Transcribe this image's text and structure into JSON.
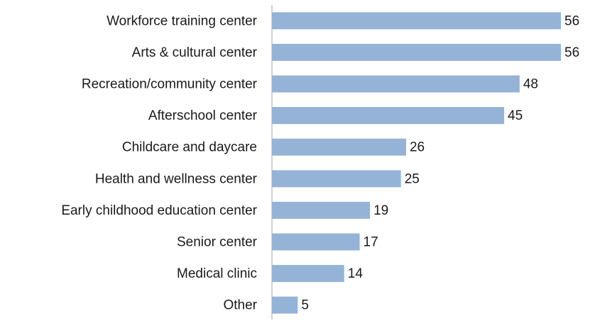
{
  "chart_data": {
    "type": "hbar",
    "categories": [
      "Workforce training center",
      "Arts & cultural center",
      "Recreation/community center",
      "Afterschool center",
      "Childcare and daycare",
      "Health and wellness center",
      "Early childhood education center",
      "Senior center",
      "Medical clinic",
      "Other"
    ],
    "values": [
      56,
      56,
      48,
      45,
      26,
      25,
      19,
      17,
      14,
      5
    ],
    "color": "#95b3d7",
    "xlim": [
      0,
      56
    ]
  }
}
